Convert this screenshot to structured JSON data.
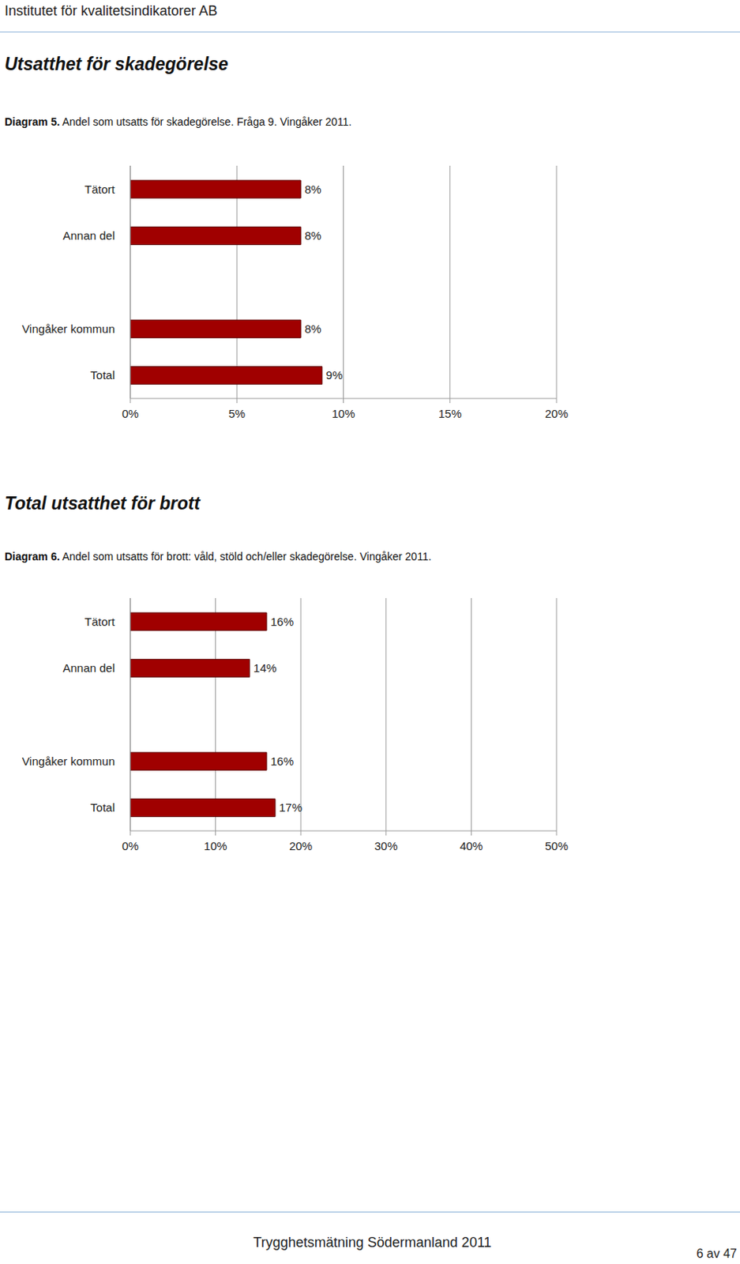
{
  "header": "Institutet för kvalitetsindikatorer AB",
  "chart_data": [
    {
      "type": "bar",
      "orientation": "horizontal",
      "title": "Utsatthet för skadegörelse",
      "subtitle": "Diagram 5. Andel som utsatts för skadegörelse. Fråga 9. Vingåker 2011.",
      "categories": [
        "Tätort",
        "Annan del",
        null,
        "Vingåker kommun",
        "Total"
      ],
      "values": [
        8,
        8,
        null,
        8,
        9
      ],
      "value_labels": [
        "8%",
        "8%",
        null,
        "8%",
        "9%"
      ],
      "color": "#a00000",
      "xlim": [
        0,
        20
      ],
      "xticks": [
        {
          "value": 0,
          "label": "0%"
        },
        {
          "value": 5,
          "label": "5%"
        },
        {
          "value": 10,
          "label": "10%"
        },
        {
          "value": 15,
          "label": "15%"
        },
        {
          "value": 20,
          "label": "20%"
        }
      ],
      "grid": true,
      "data_labels": true
    },
    {
      "type": "bar",
      "orientation": "horizontal",
      "title": "Total utsatthet för brott",
      "subtitle": "Diagram 6. Andel som utsatts för brott: våld, stöld och/eller skadegörelse. Vingåker 2011.",
      "categories": [
        "Tätort",
        "Annan del",
        null,
        "Vingåker kommun",
        "Total"
      ],
      "values": [
        16,
        14,
        null,
        16,
        17
      ],
      "value_labels": [
        "16%",
        "14%",
        null,
        "16%",
        "17%"
      ],
      "color": "#a00000",
      "xlim": [
        0,
        50
      ],
      "xticks": [
        {
          "value": 0,
          "label": "0%"
        },
        {
          "value": 10,
          "label": "10%"
        },
        {
          "value": 20,
          "label": "20%"
        },
        {
          "value": 30,
          "label": "30%"
        },
        {
          "value": 40,
          "label": "40%"
        },
        {
          "value": 50,
          "label": "50%"
        }
      ],
      "grid": true,
      "data_labels": true
    }
  ],
  "footer": "Trygghetsmätning Södermanland 2011",
  "page_number": "6 av 47"
}
